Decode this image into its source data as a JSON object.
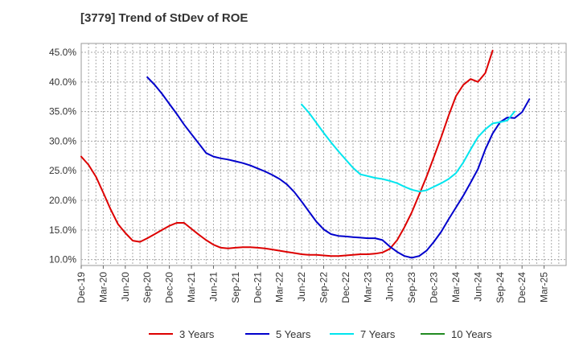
{
  "chart_data": {
    "type": "line",
    "title": "[3779]  Trend of StDev of ROE",
    "xlabel": "",
    "ylabel": "",
    "x_tick_labels": [
      "Dec-19",
      "Mar-20",
      "Jun-20",
      "Sep-20",
      "Dec-20",
      "Mar-21",
      "Jun-21",
      "Sep-21",
      "Dec-21",
      "Mar-22",
      "Jun-22",
      "Sep-22",
      "Dec-22",
      "Mar-23",
      "Jun-23",
      "Sep-23",
      "Dec-23",
      "Mar-24",
      "Jun-24",
      "Sep-24",
      "Dec-24",
      "Mar-25"
    ],
    "y_tick_labels": [
      "10.0%",
      "15.0%",
      "20.0%",
      "25.0%",
      "30.0%",
      "35.0%",
      "40.0%",
      "45.0%"
    ],
    "y_ticks": [
      10,
      15,
      20,
      25,
      30,
      35,
      40,
      45
    ],
    "ylim": [
      9,
      46.5
    ],
    "x_count": 22,
    "grid": true,
    "legend_position": "bottom",
    "series": [
      {
        "name": "3 Years",
        "color": "#dd0000",
        "start_index": 0,
        "values": [
          27.4,
          26.0,
          24.0,
          21.3,
          18.5,
          16.0,
          14.5,
          13.2,
          13.0,
          13.6,
          14.3,
          15.0,
          15.7,
          16.2,
          16.2,
          15.2,
          14.2,
          13.3,
          12.5,
          12.0,
          11.9,
          12.0,
          12.1,
          12.1,
          12.0,
          11.9,
          11.7,
          11.5,
          11.3,
          11.1,
          10.9,
          10.8,
          10.8,
          10.7,
          10.6,
          10.6,
          10.7,
          10.8,
          10.9,
          10.9,
          11.0,
          11.2,
          11.8,
          13.3,
          15.5,
          18.0,
          21.0,
          24.0,
          27.3,
          30.7,
          34.3,
          37.6,
          39.5,
          40.5,
          40.0,
          41.5,
          45.3
        ]
      },
      {
        "name": "5 Years",
        "color": "#0000cc",
        "start_index": 9,
        "values": [
          40.8,
          39.5,
          38.0,
          36.3,
          34.6,
          32.8,
          31.2,
          29.6,
          28.0,
          27.4,
          27.1,
          26.9,
          26.6,
          26.3,
          25.9,
          25.4,
          24.9,
          24.3,
          23.6,
          22.7,
          21.4,
          19.8,
          18.1,
          16.4,
          15.1,
          14.3,
          14.0,
          13.9,
          13.8,
          13.7,
          13.6,
          13.6,
          13.3,
          12.2,
          11.3,
          10.6,
          10.3,
          10.6,
          11.5,
          13.0,
          14.7,
          16.8,
          18.8,
          20.8,
          23.0,
          25.3,
          28.6,
          31.3,
          33.2,
          34.0,
          33.9,
          34.9,
          37.1
        ]
      },
      {
        "name": "7 Years",
        "color": "#00e5ee",
        "start_index": 30,
        "values": [
          36.2,
          34.8,
          33.1,
          31.4,
          29.8,
          28.3,
          26.9,
          25.5,
          24.4,
          24.1,
          23.8,
          23.6,
          23.3,
          22.9,
          22.3,
          21.8,
          21.5,
          21.7,
          22.3,
          22.9,
          23.6,
          24.6,
          26.4,
          28.6,
          30.7,
          32.0,
          33.0,
          33.2,
          33.5,
          35.0
        ]
      },
      {
        "name": "10 Years",
        "color": "#228b22",
        "start_index": 0,
        "values": []
      }
    ]
  }
}
